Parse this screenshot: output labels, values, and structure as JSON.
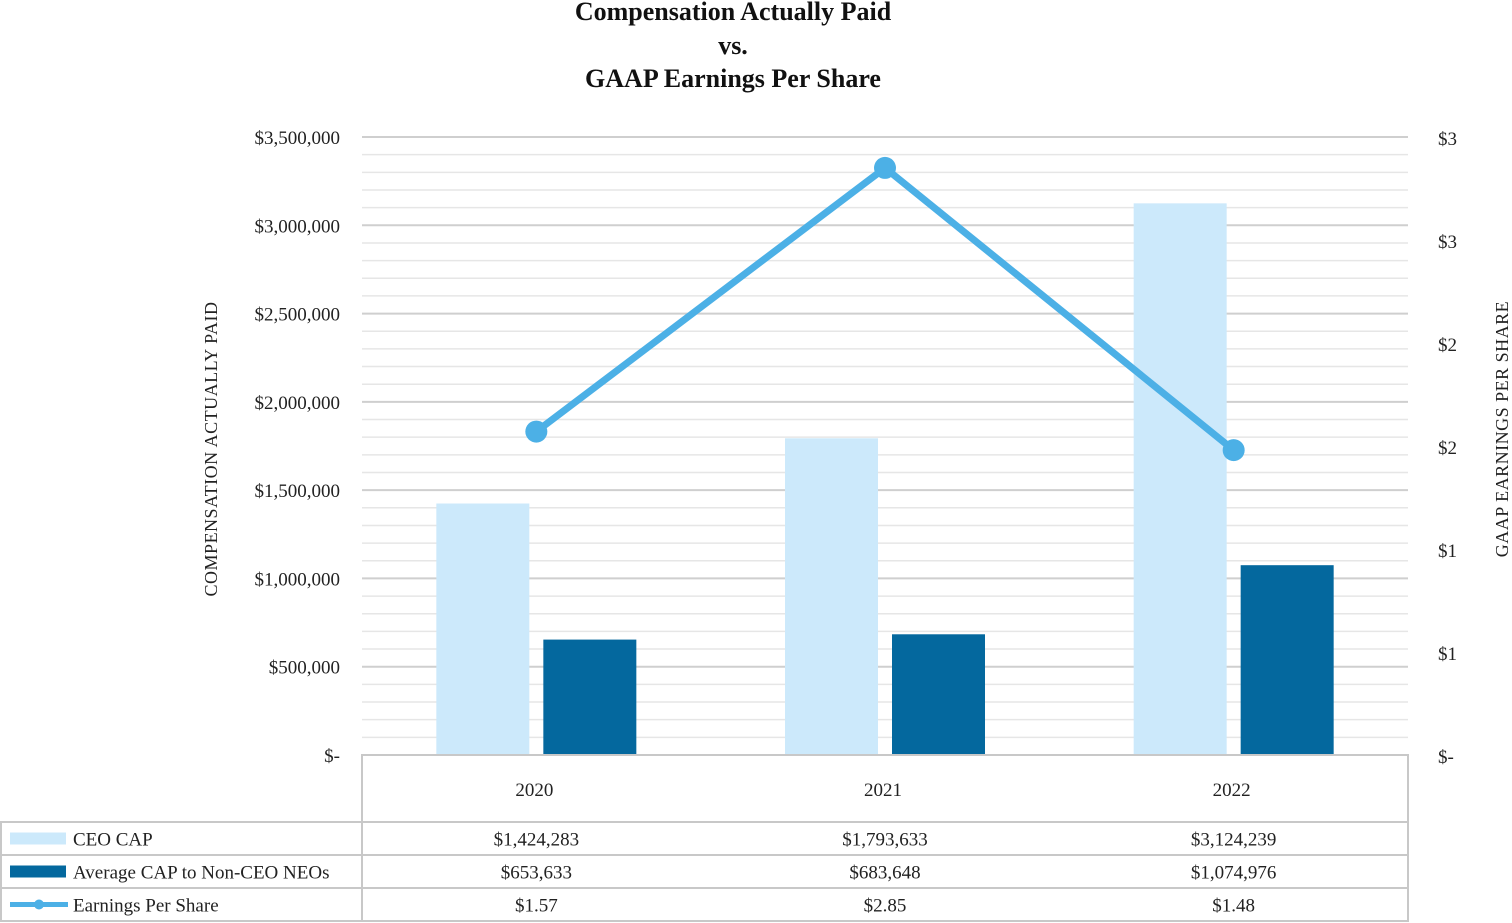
{
  "chart_data": {
    "type": "bar+line",
    "title": [
      "Compensation Actually Paid",
      "vs.",
      "GAAP Earnings Per Share"
    ],
    "categories": [
      "2020",
      "2021",
      "2022"
    ],
    "series": [
      {
        "name": "CEO CAP",
        "type": "bar",
        "axis": "left",
        "color": "#cce9fb",
        "values": [
          1424283,
          1793633,
          3124239
        ],
        "labels": [
          "$1,424,283",
          "$1,793,633",
          "$3,124,239"
        ]
      },
      {
        "name": "Average CAP to Non-CEO NEOs",
        "type": "bar",
        "axis": "left",
        "color": "#04689e",
        "values": [
          653633,
          683648,
          1074976
        ],
        "labels": [
          "$653,633",
          "$683,648",
          "$1,074,976"
        ]
      },
      {
        "name": "Earnings Per Share",
        "type": "line",
        "axis": "right",
        "color": "#4cb0e6",
        "values": [
          1.57,
          2.85,
          1.48
        ],
        "labels": [
          "$1.57",
          "$2.85",
          "$1.48"
        ]
      }
    ],
    "y_left": {
      "label": "COMPENSATION ACTUALLY PAID",
      "ylim": [
        0,
        3500000
      ],
      "ticks": [
        0,
        500000,
        1000000,
        1500000,
        2000000,
        2500000,
        3000000,
        3500000
      ],
      "tick_labels": [
        "$-",
        "$500,000",
        "$1,000,000",
        "$1,500,000",
        "$2,000,000",
        "$2,500,000",
        "$3,000,000",
        "$3,500,000"
      ]
    },
    "y_right": {
      "label": "GAAP EARNINGS PER SHARE",
      "ylim": [
        0,
        3
      ],
      "ticks": [
        0,
        0.5,
        1,
        1.5,
        2,
        2.5,
        3
      ],
      "tick_labels": [
        "$-",
        "$1",
        "$1",
        "$2",
        "$2",
        "$3",
        "$3"
      ]
    },
    "grid": true,
    "legend": "data-table-below"
  }
}
